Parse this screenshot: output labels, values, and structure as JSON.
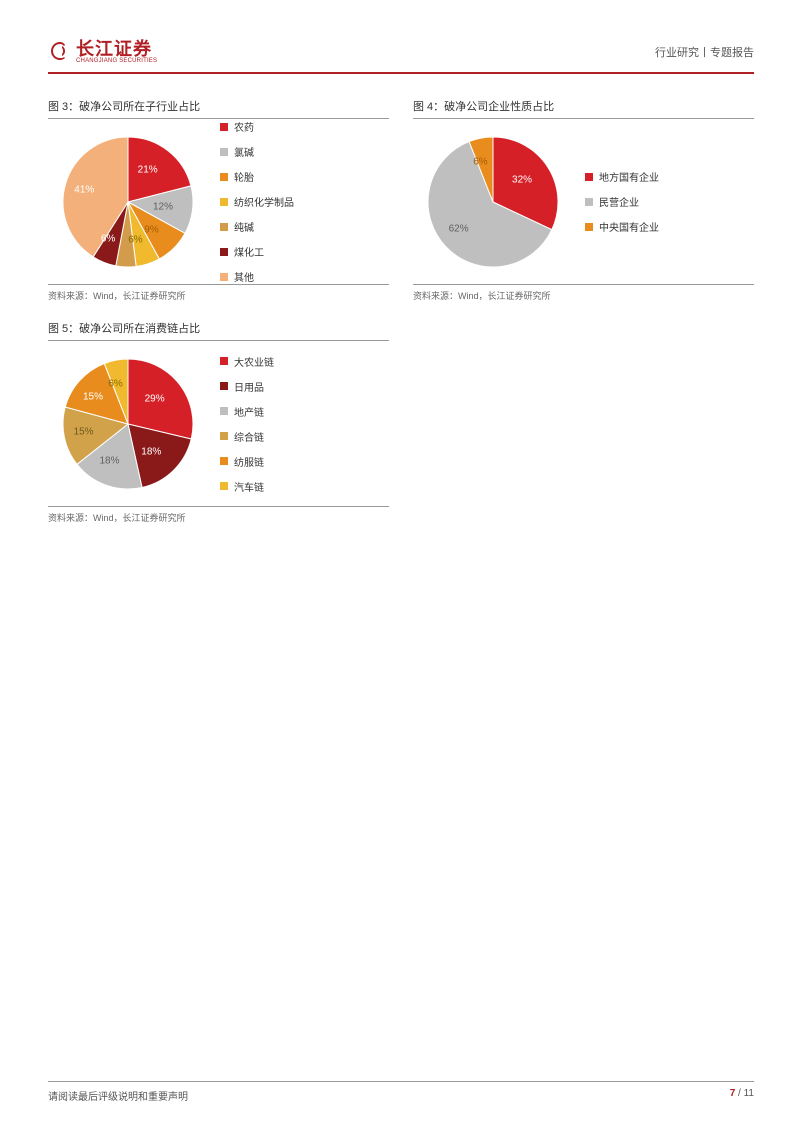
{
  "header": {
    "logo_cn": "长江证券",
    "logo_en": "CHANGJIANG SECURITIES",
    "right": "行业研究丨专题报告"
  },
  "charts": [
    {
      "id": "chart3",
      "title": "图 3：破净公司所在子行业占比",
      "source": "资料来源：Wind，长江证券研究所",
      "type": "pie",
      "radius": 65,
      "slices": [
        {
          "label": "农药",
          "value": 21,
          "color": "#d62027",
          "labelColor": "#ffffff",
          "show": "21%"
        },
        {
          "label": "氯碱",
          "value": 12,
          "color": "#bfbfbf",
          "labelColor": "#606060",
          "show": "12%"
        },
        {
          "label": "轮胎",
          "value": 9,
          "color": "#e98c1e",
          "labelColor": "#a05c00",
          "show": "9%"
        },
        {
          "label": "纺织化学制品",
          "value": 6,
          "color": "#f0b92e",
          "labelColor": "#8a6a00",
          "show": "6%"
        },
        {
          "label": "纯碱",
          "value": 5,
          "color": "#d29c4a",
          "labelColor": "#ffffff",
          "show": ""
        },
        {
          "label": "煤化工",
          "value": 6,
          "color": "#8a1a1a",
          "labelColor": "#ffffff",
          "show": "6%"
        },
        {
          "label": "其他",
          "value": 41,
          "color": "#f3b07a",
          "labelColor": "#ffffff",
          "show": "41%"
        }
      ]
    },
    {
      "id": "chart4",
      "title": "图 4：破净公司企业性质占比",
      "source": "资料来源：Wind，长江证券研究所",
      "type": "pie",
      "radius": 65,
      "slices": [
        {
          "label": "地方国有企业",
          "value": 32,
          "color": "#d62027",
          "labelColor": "#ffffff",
          "show": "32%"
        },
        {
          "label": "民营企业",
          "value": 62,
          "color": "#bfbfbf",
          "labelColor": "#606060",
          "show": "62%"
        },
        {
          "label": "中央国有企业",
          "value": 6,
          "color": "#e98c1e",
          "labelColor": "#a05c00",
          "show": "6%"
        }
      ]
    },
    {
      "id": "chart5",
      "title": "图 5：破净公司所在消费链占比",
      "source": "资料来源：Wind，长江证券研究所",
      "type": "pie",
      "radius": 65,
      "slices": [
        {
          "label": "大农业链",
          "value": 29,
          "color": "#d62027",
          "labelColor": "#ffffff",
          "show": "29%"
        },
        {
          "label": "日用品",
          "value": 18,
          "color": "#8a1a1a",
          "labelColor": "#ffffff",
          "show": "18%"
        },
        {
          "label": "地产链",
          "value": 18,
          "color": "#bfbfbf",
          "labelColor": "#606060",
          "show": "18%"
        },
        {
          "label": "综合链",
          "value": 15,
          "color": "#d2a24a",
          "labelColor": "#6e5a20",
          "show": "15%"
        },
        {
          "label": "纺服链",
          "value": 15,
          "color": "#e98c1e",
          "labelColor": "#ffffff",
          "show": "15%"
        },
        {
          "label": "汽车链",
          "value": 6,
          "color": "#f0b92e",
          "labelColor": "#8a6a00",
          "show": "6%"
        }
      ]
    }
  ],
  "footer": {
    "left": "请阅读最后评级说明和重要声明",
    "page_current": "7",
    "page_sep": " / ",
    "page_total": "11"
  }
}
